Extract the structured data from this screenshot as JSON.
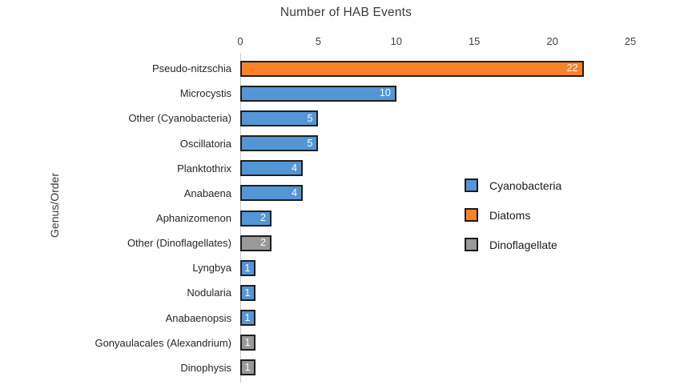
{
  "chart_data": {
    "type": "bar",
    "orientation": "horizontal",
    "title": "Number of HAB Events",
    "ylabel": "Genus/Order",
    "xlabel": "",
    "xlim": [
      0,
      25
    ],
    "x_ticks": [
      0,
      5,
      10,
      15,
      20,
      25
    ],
    "grid": false,
    "legend_position": "right",
    "bars": [
      {
        "category": "Pseudo-nitzschia",
        "value": 22,
        "group": "Diatoms"
      },
      {
        "category": "Microcystis",
        "value": 10,
        "group": "Cyanobacteria"
      },
      {
        "category": "Other (Cyanobacteria)",
        "value": 5,
        "group": "Cyanobacteria"
      },
      {
        "category": "Oscillatoria",
        "value": 5,
        "group": "Cyanobacteria"
      },
      {
        "category": "Planktothrix",
        "value": 4,
        "group": "Cyanobacteria"
      },
      {
        "category": "Anabaena",
        "value": 4,
        "group": "Cyanobacteria"
      },
      {
        "category": "Aphanizomenon",
        "value": 2,
        "group": "Cyanobacteria"
      },
      {
        "category": "Other (Dinoflagellates)",
        "value": 2,
        "group": "Dinoflagellate"
      },
      {
        "category": "Lyngbya",
        "value": 1,
        "group": "Cyanobacteria"
      },
      {
        "category": "Nodularia",
        "value": 1,
        "group": "Cyanobacteria"
      },
      {
        "category": "Anabaenopsis",
        "value": 1,
        "group": "Cyanobacteria"
      },
      {
        "category": "Gonyaulacales (Alexandrium)",
        "value": 1,
        "group": "Dinoflagellate"
      },
      {
        "category": "Dinophysis",
        "value": 1,
        "group": "Dinoflagellate"
      }
    ],
    "legend": [
      {
        "label": "Cyanobacteria",
        "color": "#5495D6"
      },
      {
        "label": "Diatoms",
        "color": "#F98228"
      },
      {
        "label": "Dinoflagellate",
        "color": "#999999"
      }
    ],
    "colors": {
      "Cyanobacteria": "#5495D6",
      "Diatoms": "#F98228",
      "Dinoflagellate": "#999999"
    },
    "bar_border_color": "#1F1F1F",
    "axis_line_color": "#C9C9C9",
    "value_label_color": "#FFFFFF"
  }
}
